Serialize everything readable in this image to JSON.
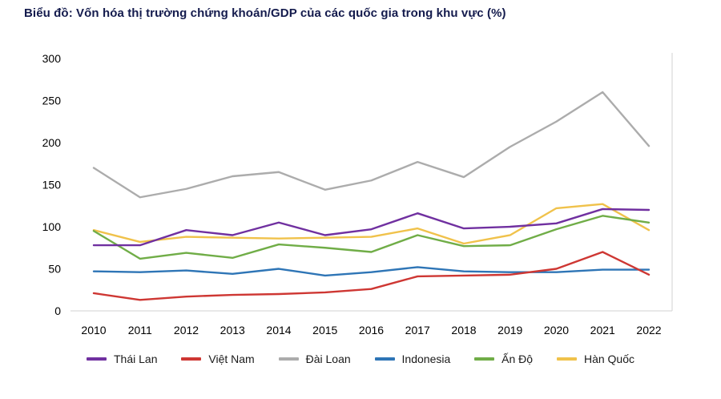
{
  "title": "Biểu đồ: Vốn hóa thị trường chứng khoán/GDP của các quốc gia trong khu vực (%)",
  "chart_data": {
    "type": "line",
    "x": [
      2010,
      2011,
      2012,
      2013,
      2014,
      2015,
      2016,
      2017,
      2018,
      2019,
      2020,
      2021,
      2022
    ],
    "ylim": [
      0,
      300
    ],
    "yticks": [
      0,
      50,
      100,
      150,
      200,
      250,
      300
    ],
    "grid": false,
    "legend_position": "bottom",
    "axis_color": "#D9D9D9",
    "series": [
      {
        "id": "thai-lan",
        "name": "Thái Lan",
        "color": "#7030A0",
        "values": [
          78,
          78,
          96,
          90,
          105,
          90,
          97,
          116,
          98,
          100,
          104,
          121,
          120
        ]
      },
      {
        "id": "viet-nam",
        "name": "Việt Nam",
        "color": "#CE3733",
        "values": [
          21,
          13,
          17,
          19,
          20,
          22,
          26,
          41,
          42,
          43,
          50,
          70,
          43
        ]
      },
      {
        "id": "dai-loan",
        "name": "Đài Loan",
        "color": "#ACACAC",
        "values": [
          170,
          135,
          145,
          160,
          165,
          144,
          155,
          177,
          159,
          195,
          225,
          260,
          196
        ]
      },
      {
        "id": "indonesia",
        "name": "Indonesia",
        "color": "#2E75B6",
        "values": [
          47,
          46,
          48,
          44,
          50,
          42,
          46,
          52,
          47,
          46,
          46,
          49,
          49
        ]
      },
      {
        "id": "an-do",
        "name": "Ấn Độ",
        "color": "#70AD47",
        "values": [
          95,
          62,
          69,
          63,
          79,
          75,
          70,
          90,
          77,
          78,
          97,
          113,
          105
        ]
      },
      {
        "id": "han-quoc",
        "name": "Hàn Quốc",
        "color": "#F0C24B",
        "values": [
          96,
          82,
          88,
          87,
          86,
          87,
          88,
          98,
          80,
          90,
          122,
          127,
          96
        ]
      }
    ]
  }
}
